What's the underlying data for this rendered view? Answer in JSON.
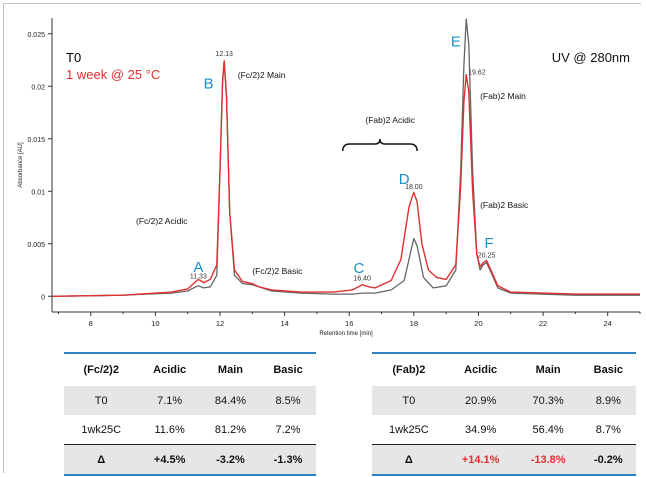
{
  "chart_data": {
    "type": "line",
    "xlabel": "Retention time [min]",
    "ylabel": "Absorbance [AU]",
    "xlim": [
      6.8,
      25.0
    ],
    "ylim": [
      -0.0015,
      0.0265
    ],
    "x_ticks": [
      "8",
      "10",
      "12",
      "14",
      "16",
      "18",
      "20",
      "22",
      "24"
    ],
    "y_ticks": [
      "0",
      "0.005",
      "0.01",
      "0.015",
      "0.02",
      "0.025"
    ],
    "legend": [
      {
        "text": "T0",
        "color": "#000000"
      },
      {
        "text": "1 week @ 25 °C",
        "color": "#e03030"
      }
    ],
    "detector_label": "UV @ 280nm",
    "series": [
      {
        "name": "T0",
        "color": "#666666",
        "points": [
          [
            6.8,
            0.0
          ],
          [
            9,
            0.0001
          ],
          [
            10.5,
            0.0003
          ],
          [
            11.0,
            0.0005
          ],
          [
            11.25,
            0.0009
          ],
          [
            11.33,
            0.001
          ],
          [
            11.5,
            0.0008
          ],
          [
            11.7,
            0.0009
          ],
          [
            11.9,
            0.002
          ],
          [
            12.0,
            0.012
          ],
          [
            12.08,
            0.0205
          ],
          [
            12.13,
            0.0224
          ],
          [
            12.2,
            0.019
          ],
          [
            12.3,
            0.008
          ],
          [
            12.45,
            0.002
          ],
          [
            12.7,
            0.0012
          ],
          [
            13.0,
            0.0011
          ],
          [
            13.2,
            0.0009
          ],
          [
            13.6,
            0.0005
          ],
          [
            14.5,
            0.0003
          ],
          [
            15.5,
            0.0002
          ],
          [
            16.1,
            0.0002
          ],
          [
            16.4,
            0.0003
          ],
          [
            16.8,
            0.0003
          ],
          [
            17.3,
            0.0006
          ],
          [
            17.7,
            0.0015
          ],
          [
            17.9,
            0.0042
          ],
          [
            18.0,
            0.0055
          ],
          [
            18.1,
            0.0048
          ],
          [
            18.3,
            0.0018
          ],
          [
            18.6,
            0.0008
          ],
          [
            19.0,
            0.001
          ],
          [
            19.3,
            0.0025
          ],
          [
            19.45,
            0.012
          ],
          [
            19.55,
            0.022
          ],
          [
            19.62,
            0.0264
          ],
          [
            19.7,
            0.024
          ],
          [
            19.82,
            0.012
          ],
          [
            19.95,
            0.004
          ],
          [
            20.05,
            0.0025
          ],
          [
            20.15,
            0.003
          ],
          [
            20.25,
            0.0032
          ],
          [
            20.4,
            0.0022
          ],
          [
            20.6,
            0.0008
          ],
          [
            21.0,
            0.0003
          ],
          [
            23.0,
            0.0001
          ],
          [
            25.0,
            0.0001
          ]
        ]
      },
      {
        "name": "1 week @ 25 °C",
        "color": "#e03030",
        "points": [
          [
            6.8,
            0.0
          ],
          [
            9,
            0.0001
          ],
          [
            10.5,
            0.0004
          ],
          [
            11.0,
            0.0007
          ],
          [
            11.25,
            0.0014
          ],
          [
            11.33,
            0.0016
          ],
          [
            11.5,
            0.0013
          ],
          [
            11.7,
            0.0016
          ],
          [
            11.9,
            0.003
          ],
          [
            12.0,
            0.012
          ],
          [
            12.08,
            0.0205
          ],
          [
            12.13,
            0.0224
          ],
          [
            12.2,
            0.019
          ],
          [
            12.3,
            0.008
          ],
          [
            12.45,
            0.0025
          ],
          [
            12.7,
            0.0014
          ],
          [
            13.0,
            0.0012
          ],
          [
            13.2,
            0.0009
          ],
          [
            13.6,
            0.0006
          ],
          [
            14.5,
            0.0004
          ],
          [
            15.5,
            0.0004
          ],
          [
            16.1,
            0.0006
          ],
          [
            16.4,
            0.0011
          ],
          [
            16.6,
            0.0009
          ],
          [
            16.8,
            0.0008
          ],
          [
            17.3,
            0.0015
          ],
          [
            17.6,
            0.0035
          ],
          [
            17.85,
            0.0085
          ],
          [
            18.0,
            0.0099
          ],
          [
            18.1,
            0.009
          ],
          [
            18.25,
            0.005
          ],
          [
            18.45,
            0.0025
          ],
          [
            18.7,
            0.0018
          ],
          [
            19.0,
            0.0016
          ],
          [
            19.3,
            0.003
          ],
          [
            19.45,
            0.0105
          ],
          [
            19.55,
            0.0185
          ],
          [
            19.62,
            0.0211
          ],
          [
            19.7,
            0.0195
          ],
          [
            19.82,
            0.01
          ],
          [
            19.95,
            0.004
          ],
          [
            20.05,
            0.0028
          ],
          [
            20.15,
            0.0032
          ],
          [
            20.25,
            0.0034
          ],
          [
            20.4,
            0.0024
          ],
          [
            20.6,
            0.001
          ],
          [
            21.0,
            0.0004
          ],
          [
            23.0,
            0.0002
          ],
          [
            25.0,
            0.0002
          ]
        ]
      }
    ],
    "peak_letters": [
      {
        "text": "A",
        "x": 11.33,
        "y": 0.0023
      },
      {
        "text": "B",
        "x": 11.65,
        "y": 0.0198
      },
      {
        "text": "C",
        "x": 16.3,
        "y": 0.0022
      },
      {
        "text": "D",
        "x": 17.7,
        "y": 0.0107
      },
      {
        "text": "E",
        "x": 19.3,
        "y": 0.0238
      },
      {
        "text": "F",
        "x": 20.33,
        "y": 0.0046
      }
    ],
    "retention_labels": [
      {
        "text": "11.33",
        "x": 11.33,
        "y": 0.0017
      },
      {
        "text": "12.13",
        "x": 12.13,
        "y": 0.0229
      },
      {
        "text": "16.40",
        "x": 16.4,
        "y": 0.0015
      },
      {
        "text": "18.00",
        "x": 18.0,
        "y": 0.0102
      },
      {
        "text": "19.62",
        "x": 19.95,
        "y": 0.0211
      },
      {
        "text": "20.25",
        "x": 20.25,
        "y": 0.0037
      }
    ],
    "annotations": [
      {
        "text": "(Fc/2)2 Main",
        "x": 12.55,
        "y": 0.0208
      },
      {
        "text": "(Fc/2)2 Acidic",
        "x": 9.4,
        "y": 0.0069
      },
      {
        "text": "(Fc/2)2 Basic",
        "x": 13.0,
        "y": 0.0021
      },
      {
        "text": "(Fab)2 Acidic",
        "x": 16.5,
        "y": 0.0165
      },
      {
        "text": "(Fab)2 Main",
        "x": 20.05,
        "y": 0.0188
      },
      {
        "text": "(Fab)2 Basic",
        "x": 20.05,
        "y": 0.0084
      }
    ],
    "brace": {
      "x1": 15.8,
      "x2": 18.1,
      "y": 0.0145
    }
  },
  "tables": [
    {
      "headers": [
        "(Fc/2)2",
        "Acidic",
        "Main",
        "Basic"
      ],
      "rows": [
        [
          "T0",
          "7.1%",
          "84.4%",
          "8.5%"
        ],
        [
          "1wk25C",
          "11.6%",
          "81.2%",
          "7.2%"
        ]
      ],
      "delta": [
        "Δ",
        "+4.5%",
        "-3.2%",
        "-1.3%"
      ]
    },
    {
      "headers": [
        "(Fab)2",
        "Acidic",
        "Main",
        "Basic"
      ],
      "rows": [
        [
          "T0",
          "20.9%",
          "70.3%",
          "8.9%"
        ],
        [
          "1wk25C",
          "34.9%",
          "56.4%",
          "8.7%"
        ]
      ],
      "delta": [
        "Δ",
        "+14.1%",
        "-13.8%",
        "-0.2%"
      ]
    }
  ]
}
